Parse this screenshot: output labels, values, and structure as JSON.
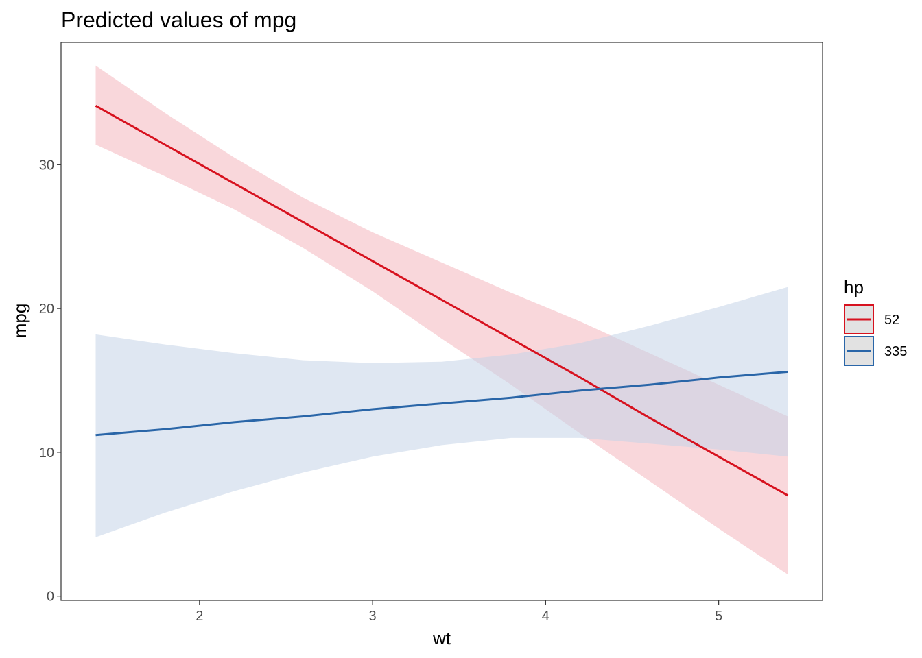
{
  "chart_data": {
    "type": "line",
    "title": "Predicted values of mpg",
    "xlabel": "wt",
    "ylabel": "mpg",
    "xlim": [
      1.2,
      5.6
    ],
    "ylim": [
      -0.3,
      38.5
    ],
    "x_ticks": [
      2,
      3,
      4,
      5
    ],
    "y_ticks": [
      0,
      10,
      20,
      30
    ],
    "grid": false,
    "legend": {
      "title": "hp",
      "position": "right"
    },
    "series": [
      {
        "name": "52",
        "color": "#d7121f",
        "ribbon_color": "#f4b6bd",
        "x": [
          1.4,
          1.8,
          2.2,
          2.6,
          3.0,
          3.4,
          3.8,
          4.2,
          4.6,
          5.0,
          5.4
        ],
        "y": [
          34.1,
          31.4,
          28.7,
          26.0,
          23.3,
          20.6,
          17.9,
          15.2,
          12.4,
          9.7,
          7.0
        ],
        "lower": [
          31.4,
          29.2,
          26.9,
          24.2,
          21.2,
          17.9,
          14.7,
          11.3,
          8.0,
          4.7,
          1.5
        ],
        "upper": [
          36.9,
          33.6,
          30.5,
          27.7,
          25.3,
          23.2,
          21.1,
          19.1,
          16.9,
          14.7,
          12.5
        ]
      },
      {
        "name": "335",
        "color": "#2a66a8",
        "ribbon_color": "#c4d4e8",
        "x": [
          1.4,
          1.8,
          2.2,
          2.6,
          3.0,
          3.4,
          3.8,
          4.2,
          4.6,
          5.0,
          5.4
        ],
        "y": [
          11.2,
          11.6,
          12.1,
          12.5,
          13.0,
          13.4,
          13.8,
          14.3,
          14.7,
          15.2,
          15.6
        ],
        "lower": [
          4.1,
          5.8,
          7.3,
          8.6,
          9.7,
          10.5,
          11.0,
          11.0,
          10.6,
          10.2,
          9.7
        ],
        "upper": [
          18.2,
          17.5,
          16.9,
          16.4,
          16.2,
          16.3,
          16.8,
          17.6,
          18.8,
          20.1,
          21.5
        ]
      }
    ]
  }
}
